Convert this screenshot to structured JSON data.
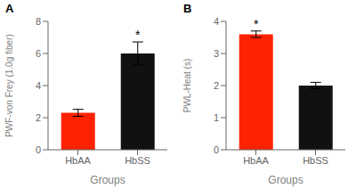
{
  "chart_data": [
    {
      "type": "bar",
      "title": "A",
      "categories": [
        "HbAA",
        "HbSS"
      ],
      "values": [
        2.3,
        6.0
      ],
      "errors": [
        0.22,
        0.72
      ],
      "colors": [
        "#ff2200",
        "#111111"
      ],
      "ylabel": "PWF-von Frey (1.0g fiber)",
      "xlabel": "Groups",
      "ylim": [
        0,
        8
      ],
      "yticks": [
        0,
        2,
        4,
        6,
        8
      ],
      "annotations": [
        {
          "category": "HbSS",
          "text": "*"
        }
      ],
      "grid": false
    },
    {
      "type": "bar",
      "title": "B",
      "categories": [
        "HbAA",
        "HbSS"
      ],
      "values": [
        3.6,
        2.0
      ],
      "errors": [
        0.1,
        0.1
      ],
      "colors": [
        "#ff2200",
        "#111111"
      ],
      "ylabel": "PWL-Heat (s)",
      "xlabel": "Groups",
      "ylim": [
        0,
        4
      ],
      "yticks": [
        0,
        1,
        2,
        3,
        4
      ],
      "annotations": [
        {
          "category": "HbAA",
          "text": "*"
        }
      ],
      "grid": false
    }
  ]
}
